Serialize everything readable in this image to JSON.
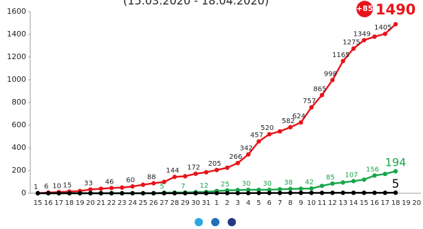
{
  "chart_data": {
    "type": "line",
    "subtitle": "(15.03.2020 - 18.04.2020)",
    "annotation": "+85",
    "categories": [
      "15",
      "16",
      "17",
      "18",
      "19",
      "20",
      "21",
      "22",
      "23",
      "24",
      "25",
      "26",
      "27",
      "28",
      "29",
      "30",
      "31",
      "1",
      "2",
      "3",
      "4",
      "5",
      "6",
      "7",
      "8",
      "9",
      "10",
      "11",
      "12",
      "13",
      "14",
      "15",
      "16",
      "17",
      "18",
      "19",
      "20"
    ],
    "series": [
      {
        "color": "#e8141b",
        "values": [
          1,
          6,
          10,
          15,
          20,
          33,
          40,
          46,
          50,
          60,
          75,
          88,
          100,
          144,
          150,
          172,
          185,
          205,
          225,
          266,
          342,
          457,
          520,
          545,
          582,
          624,
          757,
          865,
          998,
          1165,
          1275,
          1349,
          1380,
          1405,
          1490,
          null,
          null
        ],
        "value_labels": [
          "1",
          "6",
          "10",
          "15",
          null,
          "33",
          null,
          "46",
          null,
          "60",
          null,
          "88",
          null,
          "144",
          null,
          "172",
          null,
          "205",
          null,
          "266",
          "342",
          "457",
          "520",
          null,
          "582",
          "624",
          "757",
          "865",
          "998",
          "1165",
          "1275",
          "1349",
          null,
          "1405",
          "1490",
          null,
          null
        ]
      },
      {
        "color": "#1aa64b",
        "values": [
          0,
          0,
          0,
          0,
          0,
          0,
          0,
          0,
          0,
          0,
          0,
          0,
          5,
          6,
          7,
          10,
          12,
          20,
          25,
          28,
          30,
          30,
          30,
          35,
          38,
          40,
          42,
          65,
          85,
          95,
          107,
          120,
          156,
          170,
          194,
          null,
          null
        ],
        "value_labels": [
          null,
          null,
          null,
          null,
          null,
          null,
          null,
          null,
          null,
          null,
          null,
          null,
          "5",
          null,
          "7",
          null,
          "12",
          null,
          "25",
          null,
          "30",
          null,
          "30",
          null,
          "38",
          null,
          "42",
          null,
          "85",
          null,
          "107",
          null,
          "156",
          null,
          "194",
          null,
          null
        ]
      },
      {
        "color": "#000000",
        "values": [
          0,
          0,
          0,
          0,
          0,
          0,
          0,
          0,
          0,
          0,
          0,
          0,
          0,
          0,
          0,
          0,
          0,
          1,
          1,
          1,
          1,
          2,
          2,
          2,
          3,
          3,
          3,
          3,
          4,
          4,
          4,
          4,
          4,
          4,
          5,
          null,
          null
        ],
        "value_labels": [
          null,
          null,
          null,
          null,
          null,
          null,
          null,
          null,
          null,
          null,
          null,
          null,
          null,
          null,
          null,
          null,
          null,
          null,
          null,
          null,
          null,
          null,
          null,
          null,
          null,
          null,
          null,
          null,
          null,
          null,
          null,
          null,
          null,
          null,
          "5",
          null,
          null
        ]
      }
    ],
    "ylim": [
      0,
      1600
    ],
    "yticks": [
      0,
      200,
      400,
      600,
      800,
      1000,
      1200,
      1400,
      1600
    ],
    "grid": false
  }
}
